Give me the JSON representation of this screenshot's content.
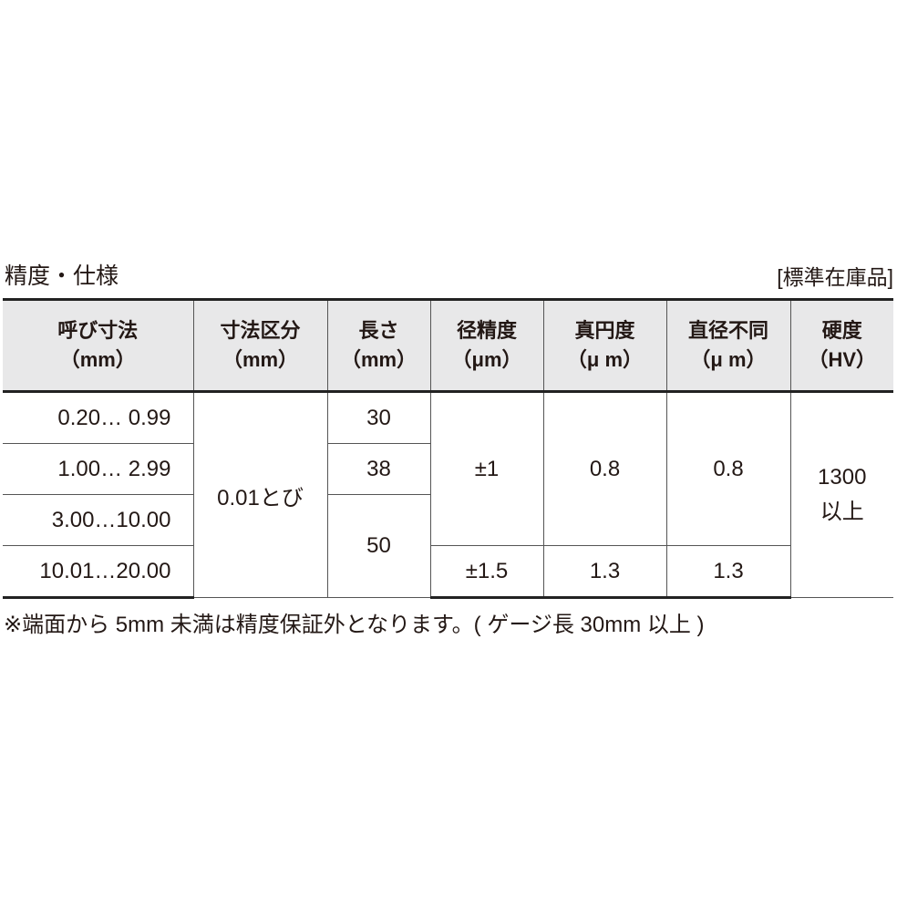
{
  "title": "精度・仕様",
  "stock_label": "[標準在庫品]",
  "headers": [
    {
      "l1": "呼び寸法",
      "l2": "（mm）"
    },
    {
      "l1": "寸法区分",
      "l2": "（mm）"
    },
    {
      "l1": "長さ",
      "l2": "（mm）"
    },
    {
      "l1": "径精度",
      "l2": "（μm）"
    },
    {
      "l1": "真円度",
      "l2": "（μ m）"
    },
    {
      "l1": "直径不同",
      "l2": "（μ m）"
    },
    {
      "l1": "硬度",
      "l2": "（HV）"
    }
  ],
  "rows": {
    "nominal": [
      "0.20… 0.99",
      "1.00… 2.99",
      "3.00…10.00",
      "10.01…20.00"
    ],
    "increment": "0.01とび",
    "length": [
      "30",
      "38",
      "50"
    ],
    "diameter_accuracy": [
      "±1",
      "±1.5"
    ],
    "roundness": [
      "0.8",
      "1.3"
    ],
    "diameter_variation": [
      "0.8",
      "1.3"
    ],
    "hardness": {
      "l1": "1300",
      "l2": "以上"
    }
  },
  "note": "※端面から 5mm 未満は精度保証外となります。( ゲージ長 30mm 以上 )"
}
